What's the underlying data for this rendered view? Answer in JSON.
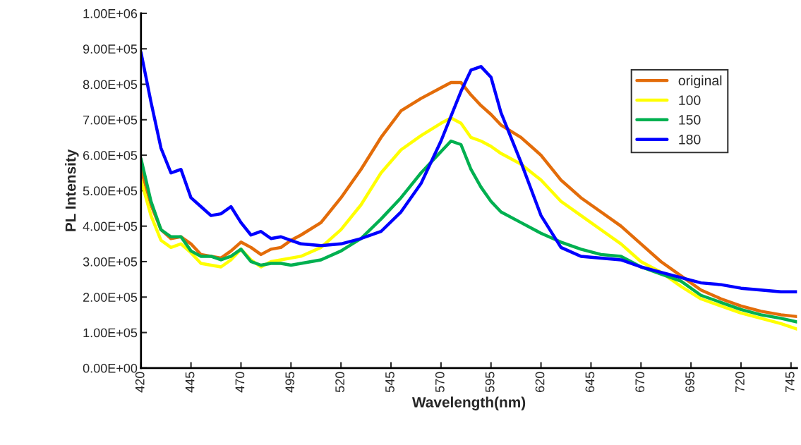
{
  "chart_data": {
    "type": "line",
    "xlabel": "Wavelength(nm)",
    "ylabel": "PL Intensity",
    "x": [
      420,
      425,
      430,
      435,
      440,
      445,
      450,
      455,
      460,
      465,
      470,
      475,
      480,
      485,
      490,
      495,
      500,
      510,
      520,
      530,
      540,
      550,
      560,
      570,
      575,
      580,
      585,
      590,
      595,
      600,
      610,
      620,
      630,
      640,
      650,
      660,
      670,
      680,
      690,
      700,
      710,
      720,
      730,
      740,
      748
    ],
    "series": [
      {
        "name": "original",
        "color": "#e36c09",
        "values": [
          560000,
          460000,
          390000,
          365000,
          370000,
          350000,
          320000,
          315000,
          310000,
          330000,
          355000,
          340000,
          320000,
          335000,
          340000,
          360000,
          375000,
          410000,
          480000,
          560000,
          650000,
          725000,
          760000,
          790000,
          805000,
          805000,
          770000,
          740000,
          715000,
          685000,
          650000,
          600000,
          530000,
          480000,
          440000,
          400000,
          350000,
          300000,
          260000,
          220000,
          195000,
          175000,
          160000,
          150000,
          145000
        ]
      },
      {
        "name": "100",
        "color": "#ffff00",
        "values": [
          530000,
          430000,
          360000,
          340000,
          350000,
          325000,
          295000,
          290000,
          285000,
          305000,
          335000,
          305000,
          285000,
          300000,
          305000,
          310000,
          315000,
          340000,
          390000,
          460000,
          550000,
          615000,
          655000,
          690000,
          705000,
          690000,
          650000,
          640000,
          625000,
          605000,
          575000,
          530000,
          470000,
          430000,
          390000,
          350000,
          300000,
          270000,
          230000,
          195000,
          175000,
          155000,
          140000,
          125000,
          110000
        ]
      },
      {
        "name": "150",
        "color": "#00b050",
        "values": [
          590000,
          470000,
          390000,
          370000,
          370000,
          330000,
          315000,
          315000,
          305000,
          315000,
          335000,
          300000,
          290000,
          295000,
          295000,
          290000,
          295000,
          305000,
          330000,
          365000,
          420000,
          480000,
          550000,
          610000,
          640000,
          630000,
          560000,
          510000,
          470000,
          440000,
          410000,
          380000,
          355000,
          335000,
          320000,
          315000,
          285000,
          265000,
          245000,
          205000,
          185000,
          165000,
          150000,
          140000,
          130000
        ]
      },
      {
        "name": "180",
        "color": "#0000ff",
        "values": [
          890000,
          750000,
          620000,
          550000,
          560000,
          480000,
          455000,
          430000,
          435000,
          455000,
          410000,
          375000,
          385000,
          365000,
          370000,
          360000,
          350000,
          345000,
          350000,
          365000,
          385000,
          440000,
          520000,
          640000,
          710000,
          780000,
          840000,
          850000,
          820000,
          720000,
          580000,
          430000,
          340000,
          315000,
          310000,
          305000,
          285000,
          270000,
          255000,
          240000,
          235000,
          225000,
          220000,
          215000,
          215000
        ]
      }
    ],
    "xlim": [
      420,
      748
    ],
    "xticks": [
      420,
      445,
      470,
      495,
      520,
      545,
      570,
      595,
      620,
      645,
      670,
      695,
      720,
      745
    ],
    "ylim": [
      0,
      1000000
    ],
    "yticks": [
      {
        "value": 0,
        "label": "0.00E+00"
      },
      {
        "value": 100000,
        "label": "1.00E+05"
      },
      {
        "value": 200000,
        "label": "2.00E+05"
      },
      {
        "value": 300000,
        "label": "3.00E+05"
      },
      {
        "value": 400000,
        "label": "4.00E+05"
      },
      {
        "value": 500000,
        "label": "5.00E+05"
      },
      {
        "value": 600000,
        "label": "6.00E+05"
      },
      {
        "value": 700000,
        "label": "7.00E+05"
      },
      {
        "value": 800000,
        "label": "8.00E+05"
      },
      {
        "value": 900000,
        "label": "9.00E+05"
      },
      {
        "value": 1000000,
        "label": "1.00E+06"
      }
    ],
    "legend": "top right",
    "grid": false,
    "marker": "none",
    "line_style": "solid"
  }
}
